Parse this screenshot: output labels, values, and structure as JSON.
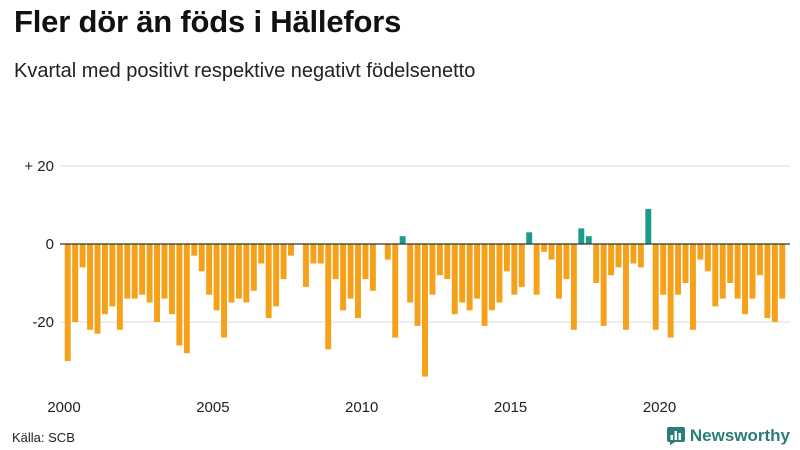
{
  "title": "Fler dör än föds i Hällefors",
  "subtitle": "Kvartal med positivt respektive negativt födelsenetto",
  "source": "Källa: SCB",
  "brand": "Newsworthy",
  "colors": {
    "negative": "#f5a21a",
    "positive": "#1b9b8b",
    "axis": "#333333",
    "grid": "#dddddd",
    "brand": "#2a7d78"
  },
  "chart_data": {
    "type": "bar",
    "title": "Fler dör än föds i Hällefors",
    "subtitle": "Kvartal med positivt respektive negativt födelsenetto",
    "xlabel": "",
    "ylabel": "",
    "ylim": [
      -36,
      24
    ],
    "yticks": [
      {
        "value": 20,
        "label": "+ 20"
      },
      {
        "value": 0,
        "label": "0"
      },
      {
        "value": -20,
        "label": "-20"
      }
    ],
    "xticks": [
      {
        "year": 2000,
        "label": "2000"
      },
      {
        "year": 2005,
        "label": "2005"
      },
      {
        "year": 2010,
        "label": "2010"
      },
      {
        "year": 2015,
        "label": "2015"
      },
      {
        "year": 2020,
        "label": "2020"
      }
    ],
    "start": {
      "year": 2000,
      "quarter": 1
    },
    "values": [
      -30,
      -20,
      -6,
      -22,
      -23,
      -18,
      -16,
      -22,
      -14,
      -14,
      -13,
      -15,
      -20,
      -14,
      -18,
      -26,
      -28,
      -3,
      -7,
      -13,
      -17,
      -24,
      -15,
      -14,
      -15,
      -12,
      -5,
      -19,
      -16,
      -9,
      -3,
      0,
      -11,
      -5,
      -5,
      -27,
      -9,
      -17,
      -14,
      -19,
      -9,
      -12,
      0,
      -4,
      -24,
      2,
      -15,
      -21,
      -34,
      -13,
      -8,
      -9,
      -18,
      -15,
      -17,
      -14,
      -21,
      -17,
      -15,
      -7,
      -13,
      -11,
      3,
      -13,
      -2,
      -4,
      -14,
      -9,
      -22,
      4,
      2,
      -10,
      -21,
      -8,
      -6,
      -22,
      -5,
      -6,
      9,
      -22,
      -13,
      -24,
      -13,
      -10,
      -22,
      -4,
      -7,
      -16,
      -14,
      -10,
      -14,
      -18,
      -14,
      -8,
      -19,
      -20,
      -14
    ]
  }
}
